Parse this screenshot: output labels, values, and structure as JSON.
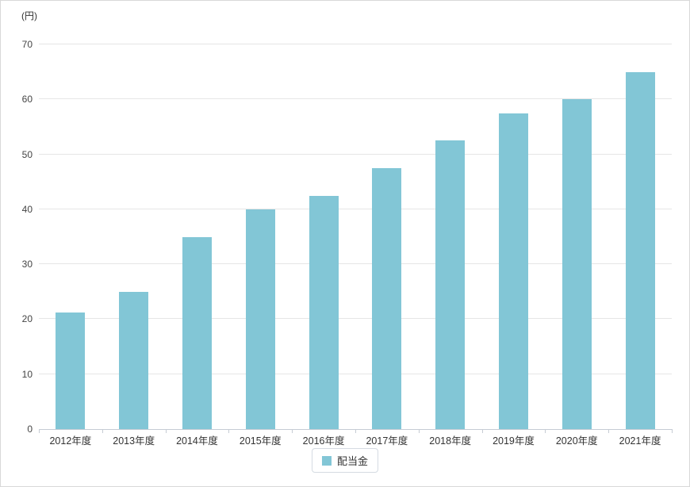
{
  "chart_data": {
    "type": "bar",
    "title": "",
    "xlabel": "",
    "ylabel": "(円)",
    "categories": [
      "2012年度",
      "2013年度",
      "2014年度",
      "2015年度",
      "2016年度",
      "2017年度",
      "2018年度",
      "2019年度",
      "2020年度",
      "2021年度"
    ],
    "series": [
      {
        "name": "配当金",
        "values": [
          21.25,
          25,
          35,
          40,
          42.5,
          47.5,
          52.5,
          57.5,
          60,
          65
        ]
      }
    ],
    "ylim": [
      0,
      70
    ],
    "ytick_step": 10,
    "ytick_labels": [
      "0",
      "10",
      "20",
      "30",
      "40",
      "50",
      "60",
      "70"
    ],
    "grid": true,
    "legend_position": "bottom",
    "colors": {
      "bar": "#82c6d6",
      "grid": "#e6e6e6",
      "axis_line": "#c6ccd4",
      "text": "#333333"
    }
  },
  "legend": {
    "label": "配当金"
  }
}
